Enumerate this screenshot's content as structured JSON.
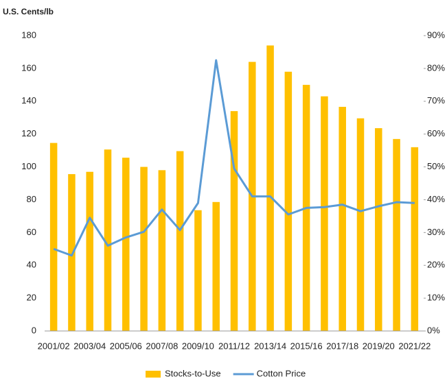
{
  "chart_data": {
    "type": "bar-line",
    "y_axis_label": "U.S. Cents/lb",
    "categories": [
      "2001/02",
      null,
      "2003/04",
      null,
      "2005/06",
      null,
      "2007/08",
      null,
      "2009/10",
      null,
      "2011/12",
      null,
      "2013/14",
      null,
      "2015/16",
      null,
      "2017/18",
      null,
      "2019/20",
      null,
      "2021/22"
    ],
    "series": [
      {
        "name": "Stocks-to-Use",
        "color": "#FFC000",
        "axis": "y2",
        "kind": "bar",
        "values": [
          57.3,
          47.8,
          48.5,
          55.3,
          52.8,
          50,
          49,
          54.8,
          36.8,
          39.3,
          67,
          82,
          87,
          79,
          75,
          71.5,
          68.3,
          64.8,
          61.8,
          58.5,
          56
        ]
      },
      {
        "name": "Cotton Price",
        "color": "#5B9BD5",
        "axis": "y",
        "kind": "line",
        "values": [
          50,
          46,
          69,
          52,
          57,
          60.5,
          74,
          61.5,
          78,
          165,
          99,
          82,
          82,
          71,
          75,
          75.5,
          77,
          73,
          76,
          78.5,
          78
        ]
      }
    ],
    "ylim": [
      0,
      180
    ],
    "yticks": [
      0,
      20,
      40,
      60,
      80,
      100,
      120,
      140,
      160,
      180
    ],
    "y2lim": [
      0,
      90
    ],
    "y2ticks": [
      {
        "value": 0,
        "label": "0%"
      },
      {
        "value": 10,
        "label": "10%"
      },
      {
        "value": 20,
        "label": "20%"
      },
      {
        "value": 30,
        "label": "30%"
      },
      {
        "value": 40,
        "label": "40%"
      },
      {
        "value": 50,
        "label": "50%"
      },
      {
        "value": 60,
        "label": "60%"
      },
      {
        "value": 70,
        "label": "70%"
      },
      {
        "value": 80,
        "label": "80%"
      },
      {
        "value": 90,
        "label": "90%"
      }
    ],
    "grid": false,
    "legend": "bottom"
  }
}
